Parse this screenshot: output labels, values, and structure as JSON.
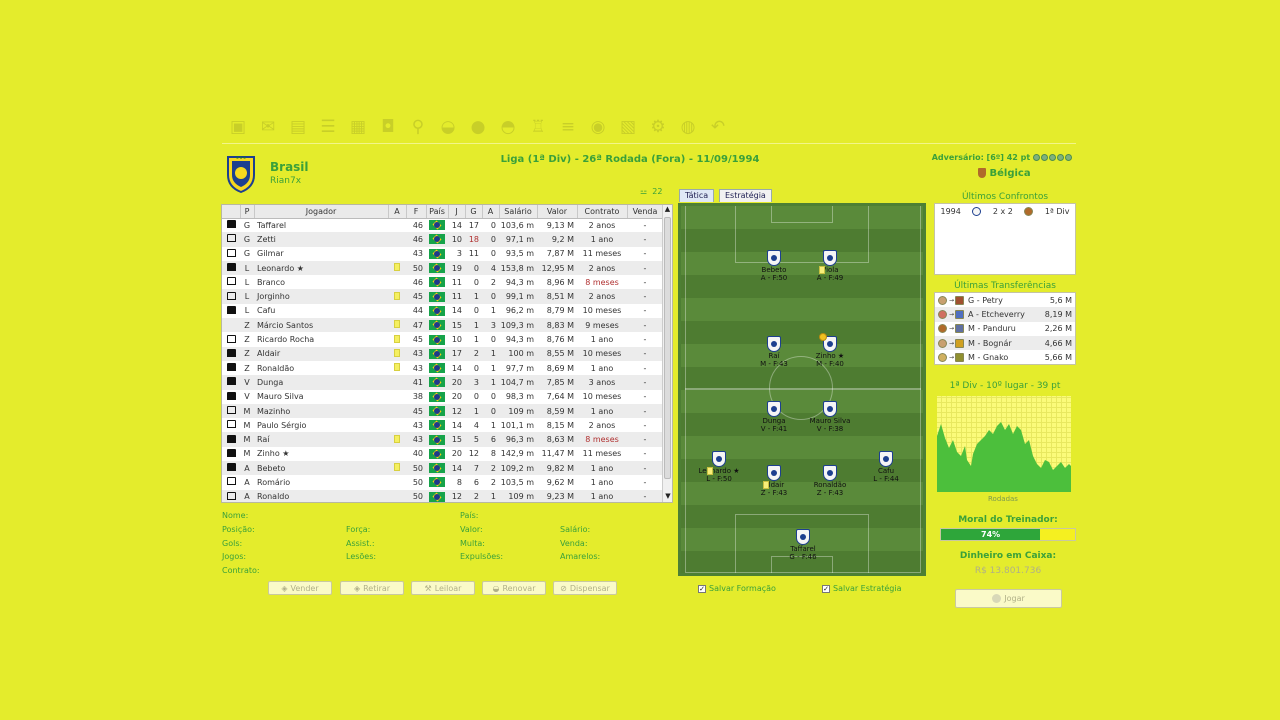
{
  "toolbar": {
    "icons": [
      {
        "name": "save-icon",
        "glyph": "▣"
      },
      {
        "name": "mail-icon",
        "glyph": "✉"
      },
      {
        "name": "calendar-icon",
        "glyph": "▤"
      },
      {
        "name": "list-icon",
        "glyph": "☰"
      },
      {
        "name": "boxes-icon",
        "glyph": "▦"
      },
      {
        "name": "shirt-icon",
        "glyph": "◘"
      },
      {
        "name": "magnifier-icon",
        "glyph": "⚲"
      },
      {
        "name": "handshake-icon",
        "glyph": "◒"
      },
      {
        "name": "ball-icon",
        "glyph": "●"
      },
      {
        "name": "cap-icon",
        "glyph": "◓"
      },
      {
        "name": "trophy-icon",
        "glyph": "♖"
      },
      {
        "name": "bars-icon",
        "glyph": "≡"
      },
      {
        "name": "person-icon",
        "glyph": "◉"
      },
      {
        "name": "notes-icon",
        "glyph": "▧"
      },
      {
        "name": "gear-icon",
        "glyph": "⚙"
      },
      {
        "name": "globe-icon",
        "glyph": "◍"
      },
      {
        "name": "undo-icon",
        "glyph": "↶"
      }
    ]
  },
  "header": {
    "team_name": "Brasil",
    "manager_name": "Rian7x",
    "match_info": "Liga (1ª Div) - 26ª Rodada (Fora) - 11/09/1994",
    "opponent_line": "Adversário: [6º] 42 pt",
    "opponent_name": "Bélgica",
    "squad_count": "22"
  },
  "table": {
    "columns": [
      "",
      "P",
      "Jogador",
      "A",
      "F",
      "País",
      "J",
      "G",
      "A",
      "Salário",
      "Valor",
      "Contrato",
      "Venda"
    ],
    "rows": [
      {
        "shirt": "black",
        "pos": "G",
        "name": "Taffarel",
        "card": false,
        "f": "46",
        "j": "14",
        "g": "17",
        "a": "0",
        "salary": "103,6 m",
        "value": "9,13 M",
        "contract": "2 anos",
        "sale": "-",
        "red_contract": false,
        "red_g": false
      },
      {
        "shirt": "white",
        "pos": "G",
        "name": "Zetti",
        "card": false,
        "f": "46",
        "j": "10",
        "g": "18",
        "a": "0",
        "salary": "97,1 m",
        "value": "9,2 M",
        "contract": "1 ano",
        "sale": "-",
        "red_contract": false,
        "red_g": true
      },
      {
        "shirt": "white",
        "pos": "G",
        "name": "Gilmar",
        "card": false,
        "f": "43",
        "j": "3",
        "g": "11",
        "a": "0",
        "salary": "93,5 m",
        "value": "7,87 M",
        "contract": "11 meses",
        "sale": "-",
        "red_contract": false,
        "red_g": false
      },
      {
        "shirt": "black",
        "pos": "L",
        "name": "Leonardo ★",
        "card": true,
        "f": "50",
        "j": "19",
        "g": "0",
        "a": "4",
        "salary": "153,8 m",
        "value": "12,95 M",
        "contract": "2 anos",
        "sale": "-",
        "red_contract": false,
        "red_g": false
      },
      {
        "shirt": "white",
        "pos": "L",
        "name": "Branco",
        "card": false,
        "f": "46",
        "j": "11",
        "g": "0",
        "a": "2",
        "salary": "94,3 m",
        "value": "8,96 M",
        "contract": "8 meses",
        "sale": "-",
        "red_contract": true,
        "red_g": false
      },
      {
        "shirt": "white",
        "pos": "L",
        "name": "Jorginho",
        "card": true,
        "f": "45",
        "j": "11",
        "g": "1",
        "a": "0",
        "salary": "99,1 m",
        "value": "8,51 M",
        "contract": "2 anos",
        "sale": "-",
        "red_contract": false,
        "red_g": false
      },
      {
        "shirt": "black",
        "pos": "L",
        "name": "Cafu",
        "card": false,
        "f": "44",
        "j": "14",
        "g": "0",
        "a": "1",
        "salary": "96,2 m",
        "value": "8,79 M",
        "contract": "10 meses",
        "sale": "-",
        "red_contract": false,
        "red_g": false
      },
      {
        "shirt": "none",
        "pos": "Z",
        "name": "Márcio Santos",
        "card": true,
        "f": "47",
        "j": "15",
        "g": "1",
        "a": "3",
        "salary": "109,3 m",
        "value": "8,83 M",
        "contract": "9 meses",
        "sale": "-",
        "red_contract": false,
        "red_g": false
      },
      {
        "shirt": "white",
        "pos": "Z",
        "name": "Ricardo Rocha",
        "card": true,
        "f": "45",
        "j": "10",
        "g": "1",
        "a": "0",
        "salary": "94,3 m",
        "value": "8,76 M",
        "contract": "1 ano",
        "sale": "-",
        "red_contract": false,
        "red_g": false
      },
      {
        "shirt": "black",
        "pos": "Z",
        "name": "Aldair",
        "card": true,
        "f": "43",
        "j": "17",
        "g": "2",
        "a": "1",
        "salary": "100 m",
        "value": "8,55 M",
        "contract": "10 meses",
        "sale": "-",
        "red_contract": false,
        "red_g": false
      },
      {
        "shirt": "black",
        "pos": "Z",
        "name": "Ronaldão",
        "card": true,
        "f": "43",
        "j": "14",
        "g": "0",
        "a": "1",
        "salary": "97,7 m",
        "value": "8,69 M",
        "contract": "1 ano",
        "sale": "-",
        "red_contract": false,
        "red_g": false
      },
      {
        "shirt": "black",
        "pos": "V",
        "name": "Dunga",
        "card": false,
        "f": "41",
        "j": "20",
        "g": "3",
        "a": "1",
        "salary": "104,7 m",
        "value": "7,85 M",
        "contract": "3 anos",
        "sale": "-",
        "red_contract": false,
        "red_g": false
      },
      {
        "shirt": "black",
        "pos": "V",
        "name": "Mauro Silva",
        "card": false,
        "f": "38",
        "j": "20",
        "g": "0",
        "a": "0",
        "salary": "98,3 m",
        "value": "7,64 M",
        "contract": "10 meses",
        "sale": "-",
        "red_contract": false,
        "red_g": false
      },
      {
        "shirt": "white",
        "pos": "M",
        "name": "Mazinho",
        "card": false,
        "f": "45",
        "j": "12",
        "g": "1",
        "a": "0",
        "salary": "109 m",
        "value": "8,59 M",
        "contract": "1 ano",
        "sale": "-",
        "red_contract": false,
        "red_g": false
      },
      {
        "shirt": "white",
        "pos": "M",
        "name": "Paulo Sérgio",
        "card": false,
        "f": "43",
        "j": "14",
        "g": "4",
        "a": "1",
        "salary": "101,1 m",
        "value": "8,15 M",
        "contract": "2 anos",
        "sale": "-",
        "red_contract": false,
        "red_g": false
      },
      {
        "shirt": "black",
        "pos": "M",
        "name": "Raí",
        "card": true,
        "f": "43",
        "j": "15",
        "g": "5",
        "a": "6",
        "salary": "96,3 m",
        "value": "8,63 M",
        "contract": "8 meses",
        "sale": "-",
        "red_contract": true,
        "red_g": false
      },
      {
        "shirt": "black",
        "pos": "M",
        "name": "Zinho ★",
        "card": false,
        "f": "40",
        "j": "20",
        "g": "12",
        "a": "8",
        "salary": "142,9 m",
        "value": "11,47 M",
        "contract": "11 meses",
        "sale": "-",
        "red_contract": false,
        "red_g": false
      },
      {
        "shirt": "black",
        "pos": "A",
        "name": "Bebeto",
        "card": true,
        "f": "50",
        "j": "14",
        "g": "7",
        "a": "2",
        "salary": "109,2 m",
        "value": "9,82 M",
        "contract": "1 ano",
        "sale": "-",
        "red_contract": false,
        "red_g": false
      },
      {
        "shirt": "white",
        "pos": "A",
        "name": "Romário",
        "card": false,
        "f": "50",
        "j": "8",
        "g": "6",
        "a": "2",
        "salary": "103,5 m",
        "value": "9,62 M",
        "contract": "1 ano",
        "sale": "-",
        "red_contract": false,
        "red_g": false
      },
      {
        "shirt": "white",
        "pos": "A",
        "name": "Ronaldo",
        "card": false,
        "f": "50",
        "j": "12",
        "g": "2",
        "a": "1",
        "salary": "109 m",
        "value": "9,23 M",
        "contract": "1 ano",
        "sale": "-",
        "red_contract": false,
        "red_g": false
      }
    ]
  },
  "details": {
    "nome": "Nome:",
    "posicao": "Posição:",
    "gols": "Gols:",
    "jogos": "Jogos:",
    "contrato": "Contrato:",
    "forca": "Força:",
    "assist": "Assist.:",
    "lesoes": "Lesões:",
    "pais": "País:",
    "valor": "Valor:",
    "multa": "Multa:",
    "expulsoes": "Expulsões:",
    "salario": "Salário:",
    "venda": "Venda:",
    "amarelos": "Amarelos:"
  },
  "actions": {
    "vender": "Vender",
    "retirar": "Retirar",
    "leiloar": "Leiloar",
    "renovar": "Renovar",
    "dispensar": "Dispensar"
  },
  "pitch": {
    "tab_tatica": "Tática",
    "tab_estrategia": "Estratégia",
    "players": [
      {
        "id": "bebeto",
        "name": "Bebeto",
        "pos": "A - F:50"
      },
      {
        "id": "viola",
        "name": "Viola",
        "pos": "A - F:49"
      },
      {
        "id": "rai",
        "name": "Raí",
        "pos": "M - F:43"
      },
      {
        "id": "zinho",
        "name": "Zinho ★",
        "pos": "M - F:40"
      },
      {
        "id": "dunga",
        "name": "Dunga",
        "pos": "V - F:41"
      },
      {
        "id": "maurosilva",
        "name": "Mauro Silva",
        "pos": "V - F:38"
      },
      {
        "id": "leonardo",
        "name": "Leonardo ★",
        "pos": "L - F:50"
      },
      {
        "id": "aldair",
        "name": "Aldair",
        "pos": "Z - F:43"
      },
      {
        "id": "ronaldao",
        "name": "Ronaldão",
        "pos": "Z - F:43"
      },
      {
        "id": "cafu",
        "name": "Cafu",
        "pos": "L - F:44"
      },
      {
        "id": "taffarel",
        "name": "Taffarel",
        "pos": "G - F:46"
      }
    ],
    "save_formation": "Salvar Formação",
    "save_strategy": "Salvar Estratégia"
  },
  "right": {
    "last_matches_title": "Últimos Confrontos",
    "last_match": {
      "year": "1994",
      "score": "2 x 2",
      "comp": "1ª Div"
    },
    "transfers_title": "Últimas Transferências",
    "transfers": [
      {
        "player": "G - Petry",
        "value": "5,6 M"
      },
      {
        "player": "A - Etcheverry",
        "value": "8,19 M"
      },
      {
        "player": "M - Panduru",
        "value": "2,26 M"
      },
      {
        "player": "M - Bognár",
        "value": "4,66 M"
      },
      {
        "player": "M - Gnako",
        "value": "5,66 M"
      }
    ],
    "league_pos": "1ª Div - 10º lugar - 39 pt",
    "chart_xlabel": "Rodadas",
    "morale_title": "Moral do Treinador:",
    "morale_value": "74%",
    "morale_pct": 74,
    "cash_title": "Dinheiro em Caixa:",
    "cash_value": "R$ 13.801.736",
    "play_button": "Jogar"
  },
  "colors": {
    "background": "#e4ec2c",
    "accent_green": "#3aa03a",
    "pitch_green": "#5a8a3a"
  }
}
